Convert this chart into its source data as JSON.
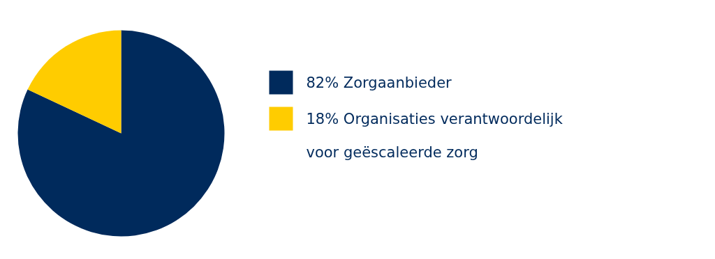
{
  "chart_data": {
    "type": "pie",
    "categories": [
      "Zorgaanbieder",
      "Organisaties verantwoordelijk voor geëscaleerde zorg"
    ],
    "values": [
      82,
      18
    ],
    "colors": [
      "#002a5c",
      "#ffcc00"
    ],
    "value_labels": [
      "82%",
      "18%"
    ],
    "legend": "right"
  }
}
